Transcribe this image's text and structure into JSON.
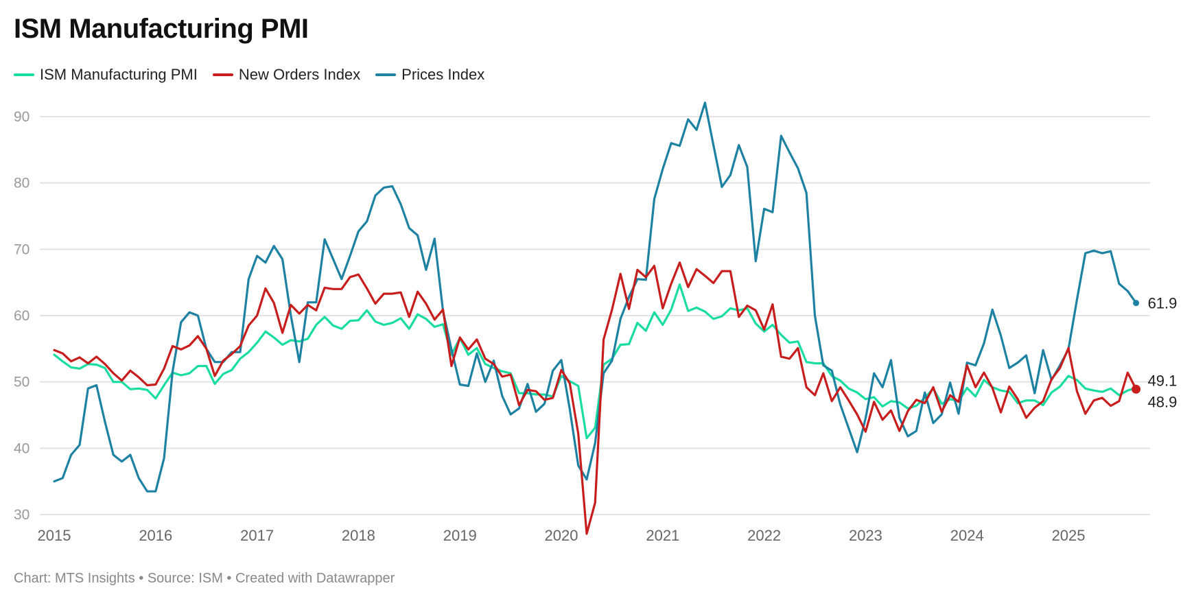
{
  "title": "ISM Manufacturing PMI",
  "footer": "Chart: MTS Insights • Source: ISM • Created with Datawrapper",
  "chart_data": {
    "type": "line",
    "title": "ISM Manufacturing PMI",
    "xlabel": "",
    "ylabel": "",
    "x_start": "2015-01",
    "x_end": "2025-09",
    "frequency": "monthly",
    "ylim": [
      30,
      90
    ],
    "yticks": [
      30,
      40,
      50,
      60,
      70,
      80,
      90
    ],
    "xticks": [
      "2015",
      "2016",
      "2017",
      "2018",
      "2019",
      "2020",
      "2021",
      "2022",
      "2023",
      "2024",
      "2025"
    ],
    "grid": true,
    "legend_position": "top-left",
    "series": [
      {
        "name": "ISM Manufacturing PMI",
        "color": "#19dca0",
        "end_label": "49.1",
        "values": [
          54.1,
          53.1,
          52.2,
          52.0,
          52.7,
          52.6,
          52.1,
          50.0,
          50.0,
          48.9,
          49.0,
          48.8,
          47.5,
          49.5,
          51.4,
          51.0,
          51.3,
          52.4,
          52.4,
          49.7,
          51.2,
          51.8,
          53.5,
          54.5,
          55.9,
          57.6,
          56.7,
          55.6,
          56.3,
          56.1,
          56.5,
          58.6,
          59.8,
          58.5,
          58.0,
          59.2,
          59.3,
          60.8,
          59.1,
          58.6,
          58.9,
          59.6,
          58.0,
          60.2,
          59.5,
          58.3,
          58.7,
          54.1,
          56.6,
          54.1,
          55.1,
          52.7,
          52.1,
          51.6,
          51.3,
          48.3,
          48.3,
          48.1,
          48.1,
          47.8,
          50.9,
          50.1,
          49.4,
          41.5,
          43.1,
          52.6,
          53.5,
          55.6,
          55.7,
          58.9,
          57.7,
          60.5,
          58.6,
          60.9,
          64.7,
          60.7,
          61.2,
          60.6,
          59.5,
          59.9,
          61.1,
          60.8,
          61.1,
          58.8,
          57.6,
          58.6,
          57.1,
          55.9,
          56.1,
          53.0,
          52.8,
          52.8,
          50.9,
          50.2,
          49.0,
          48.4,
          47.4,
          47.7,
          46.3,
          47.1,
          46.9,
          46.0,
          46.4,
          47.6,
          49.0,
          46.7,
          47.4,
          47.1,
          49.1,
          47.8,
          50.3,
          49.2,
          48.7,
          48.5,
          46.8,
          47.2,
          47.2,
          46.5,
          48.4,
          49.3,
          50.9,
          50.3,
          49.0,
          48.7,
          48.5,
          49.0,
          48.0,
          48.7,
          49.1
        ]
      },
      {
        "name": "New Orders Index",
        "color": "#c71e1d",
        "end_label": "48.9",
        "values": [
          54.8,
          54.3,
          53.1,
          53.7,
          52.8,
          53.8,
          52.7,
          51.3,
          50.2,
          51.7,
          50.7,
          49.5,
          49.6,
          52.0,
          55.4,
          54.9,
          55.5,
          56.9,
          55.0,
          50.9,
          53.2,
          54.2,
          55.4,
          58.5,
          60.0,
          64.1,
          61.9,
          57.4,
          61.6,
          60.3,
          61.6,
          60.8,
          64.2,
          64.0,
          64.0,
          65.8,
          66.2,
          64.1,
          61.8,
          63.3,
          63.3,
          63.5,
          59.8,
          63.6,
          61.8,
          59.4,
          60.9,
          52.4,
          56.7,
          54.9,
          56.4,
          53.5,
          52.7,
          50.8,
          51.1,
          46.5,
          48.8,
          48.6,
          47.3,
          47.6,
          51.8,
          49.8,
          42.2,
          27.1,
          31.8,
          56.4,
          60.9,
          66.3,
          61.0,
          66.9,
          65.8,
          67.5,
          61.1,
          64.8,
          68.0,
          64.3,
          67.0,
          66.0,
          64.9,
          66.7,
          66.7,
          59.8,
          61.5,
          60.8,
          57.9,
          61.7,
          53.8,
          53.5,
          55.1,
          49.2,
          48.0,
          51.3,
          47.1,
          49.2,
          47.2,
          45.1,
          42.5,
          47.0,
          44.3,
          45.7,
          42.6,
          45.6,
          47.3,
          46.8,
          49.2,
          45.5,
          48.0,
          47.0,
          52.5,
          49.2,
          51.4,
          49.1,
          45.4,
          49.3,
          47.4,
          44.6,
          46.1,
          47.1,
          50.4,
          52.1,
          55.1,
          48.6,
          45.2,
          47.2,
          47.6,
          46.4,
          47.1,
          51.4,
          48.9
        ]
      },
      {
        "name": "Prices Index",
        "color": "#1d81a2",
        "end_label": "61.9",
        "values": [
          35.0,
          35.5,
          39.0,
          40.5,
          49.0,
          49.5,
          44.0,
          39.0,
          38.0,
          39.0,
          35.5,
          33.5,
          33.5,
          38.5,
          51.5,
          59.0,
          60.5,
          60.0,
          55.0,
          53.0,
          53.0,
          54.5,
          54.5,
          65.5,
          69.0,
          68.0,
          70.5,
          68.5,
          60.0,
          53.0,
          62.0,
          62.0,
          71.5,
          68.5,
          65.5,
          69.0,
          72.7,
          74.2,
          78.1,
          79.3,
          79.5,
          76.8,
          73.2,
          72.1,
          66.9,
          71.6,
          60.7,
          54.9,
          49.6,
          49.4,
          54.3,
          50.0,
          53.2,
          47.9,
          45.1,
          46.0,
          49.7,
          45.5,
          46.7,
          51.7,
          53.3,
          45.9,
          37.4,
          35.3,
          40.8,
          51.3,
          53.2,
          59.5,
          62.8,
          65.5,
          65.4,
          77.6,
          82.1,
          86.0,
          85.6,
          89.6,
          88.0,
          92.1,
          85.7,
          79.4,
          81.2,
          85.7,
          82.4,
          68.2,
          76.1,
          75.6,
          87.1,
          84.6,
          82.2,
          78.5,
          60.0,
          52.5,
          51.7,
          46.6,
          43.0,
          39.4,
          44.5,
          51.3,
          49.2,
          53.3,
          44.6,
          41.8,
          42.6,
          48.4,
          43.8,
          45.1,
          49.9,
          45.2,
          52.9,
          52.5,
          55.8,
          60.9,
          57.0,
          52.1,
          52.9,
          54.0,
          48.3,
          54.8,
          50.3,
          52.5,
          54.9,
          62.4,
          69.4,
          69.8,
          69.4,
          69.7,
          64.8,
          63.7,
          61.9
        ]
      }
    ]
  }
}
